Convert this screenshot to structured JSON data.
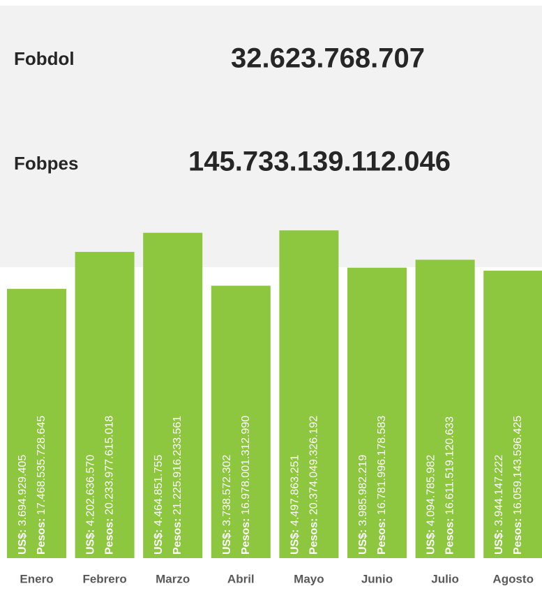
{
  "kpis": [
    {
      "label": "Fobdol",
      "value": "32.623.768.707"
    },
    {
      "label": "Fobpes",
      "value": "145.733.139.112.046"
    }
  ],
  "chart_data": {
    "type": "bar",
    "categories": [
      "Enero",
      "Febrero",
      "Marzo",
      "Abril",
      "Mayo",
      "Junio",
      "Julio",
      "Agosto"
    ],
    "color": "#8dc63f",
    "ylim": [
      0,
      4500000000
    ],
    "series": [
      {
        "name": "US$:",
        "values": [
          3694929405,
          4202636570,
          4464851755,
          3738572302,
          4497863251,
          3985982219,
          4094785982,
          3944147222
        ],
        "value_labels": [
          "3.694.929.405",
          "4.202.636.570",
          "4.464.851.755",
          "3.738.572.302",
          "4.497.863.251",
          "3.985.982.219",
          "4.094.785.982",
          "3.944.147.222"
        ]
      },
      {
        "name": "Pesos:",
        "values": [
          17468535728645,
          20233977615018,
          21225916233561,
          16978001312990,
          20374049326192,
          16781996178583,
          16611519120633,
          16059143596425
        ],
        "value_labels": [
          "17.468.535.728.645",
          "20.233.977.615.018",
          "21.225.916.233.561",
          "16.978.001.312.990",
          "20.374.049.326.192",
          "16.781.996.178.583",
          "16.611.519.120.633",
          "16.059.143.596.425"
        ]
      }
    ]
  }
}
